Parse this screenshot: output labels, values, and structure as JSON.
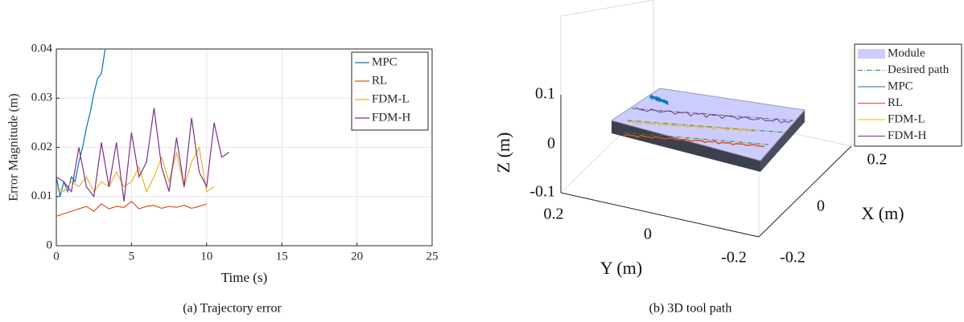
{
  "chart_data": [
    {
      "type": "line",
      "caption": "(a) Trajectory error",
      "xlabel": "Time (s)",
      "ylabel": "Error Magnitude (m)",
      "xlim": [
        0,
        25
      ],
      "ylim": [
        0,
        0.04
      ],
      "xticks": [
        0,
        5,
        10,
        15,
        20,
        25
      ],
      "yticks": [
        0,
        0.01,
        0.02,
        0.03,
        0.04
      ],
      "grid": true,
      "legend": "upper right",
      "series": [
        {
          "name": "MPC",
          "color": "#0072BD",
          "x": [
            0,
            0.25,
            0.5,
            0.75,
            1,
            1.25,
            1.5,
            1.75,
            2,
            2.25,
            2.5,
            2.75,
            3,
            3.25
          ],
          "values": [
            0.014,
            0.01,
            0.013,
            0.011,
            0.014,
            0.013,
            0.017,
            0.02,
            0.024,
            0.027,
            0.031,
            0.034,
            0.035,
            0.04
          ]
        },
        {
          "name": "RL",
          "color": "#D95319",
          "x": [
            0,
            0.5,
            1,
            1.5,
            2,
            2.5,
            3,
            3.5,
            4,
            4.5,
            5,
            5.5,
            6,
            6.5,
            7,
            7.5,
            8,
            8.5,
            9,
            9.5,
            10
          ],
          "values": [
            0.006,
            0.0065,
            0.007,
            0.0075,
            0.008,
            0.007,
            0.0085,
            0.0075,
            0.008,
            0.0078,
            0.009,
            0.0075,
            0.008,
            0.0082,
            0.0076,
            0.008,
            0.0078,
            0.0082,
            0.0076,
            0.008,
            0.0085
          ]
        },
        {
          "name": "FDM-L",
          "color": "#EDB120",
          "x": [
            0,
            0.5,
            1,
            1.5,
            2,
            2.5,
            3,
            3.5,
            4,
            4.5,
            5,
            5.5,
            6,
            6.5,
            7,
            7.5,
            8,
            8.5,
            9,
            9.5,
            10,
            10.5
          ],
          "values": [
            0.012,
            0.011,
            0.013,
            0.012,
            0.014,
            0.011,
            0.013,
            0.012,
            0.015,
            0.012,
            0.013,
            0.016,
            0.011,
            0.014,
            0.018,
            0.013,
            0.019,
            0.012,
            0.017,
            0.02,
            0.011,
            0.012
          ]
        },
        {
          "name": "FDM-H",
          "color": "#7E2F8E",
          "x": [
            0,
            0.5,
            1,
            1.5,
            2,
            2.5,
            3,
            3.5,
            4,
            4.5,
            5,
            5.5,
            6,
            6.5,
            7,
            7.5,
            8,
            8.5,
            9,
            9.5,
            10,
            10.5,
            11,
            11.5
          ],
          "values": [
            0.014,
            0.013,
            0.011,
            0.02,
            0.012,
            0.01,
            0.021,
            0.012,
            0.021,
            0.009,
            0.023,
            0.014,
            0.017,
            0.028,
            0.016,
            0.011,
            0.022,
            0.012,
            0.026,
            0.015,
            0.012,
            0.025,
            0.018,
            0.019
          ]
        }
      ]
    },
    {
      "type": "3d",
      "caption": "(b) 3D tool path",
      "xlabel": "X (m)",
      "ylabel": "Y (m)",
      "zlabel": "Z (m)",
      "xticks": [
        0.2,
        0,
        -0.2
      ],
      "yticks": [
        0.2,
        0,
        -0.2
      ],
      "zticks": [
        0.1,
        0,
        -0.1
      ],
      "legend": "upper right",
      "series": [
        {
          "name": "Module",
          "color": "#ccccff"
        },
        {
          "name": "Desired path",
          "color": "#2e8b2e"
        },
        {
          "name": "MPC",
          "color": "#0072BD"
        },
        {
          "name": "RL",
          "color": "#D95319"
        },
        {
          "name": "FDM-L",
          "color": "#EDB120"
        },
        {
          "name": "FDM-H",
          "color": "#7E2F8E"
        }
      ]
    }
  ]
}
